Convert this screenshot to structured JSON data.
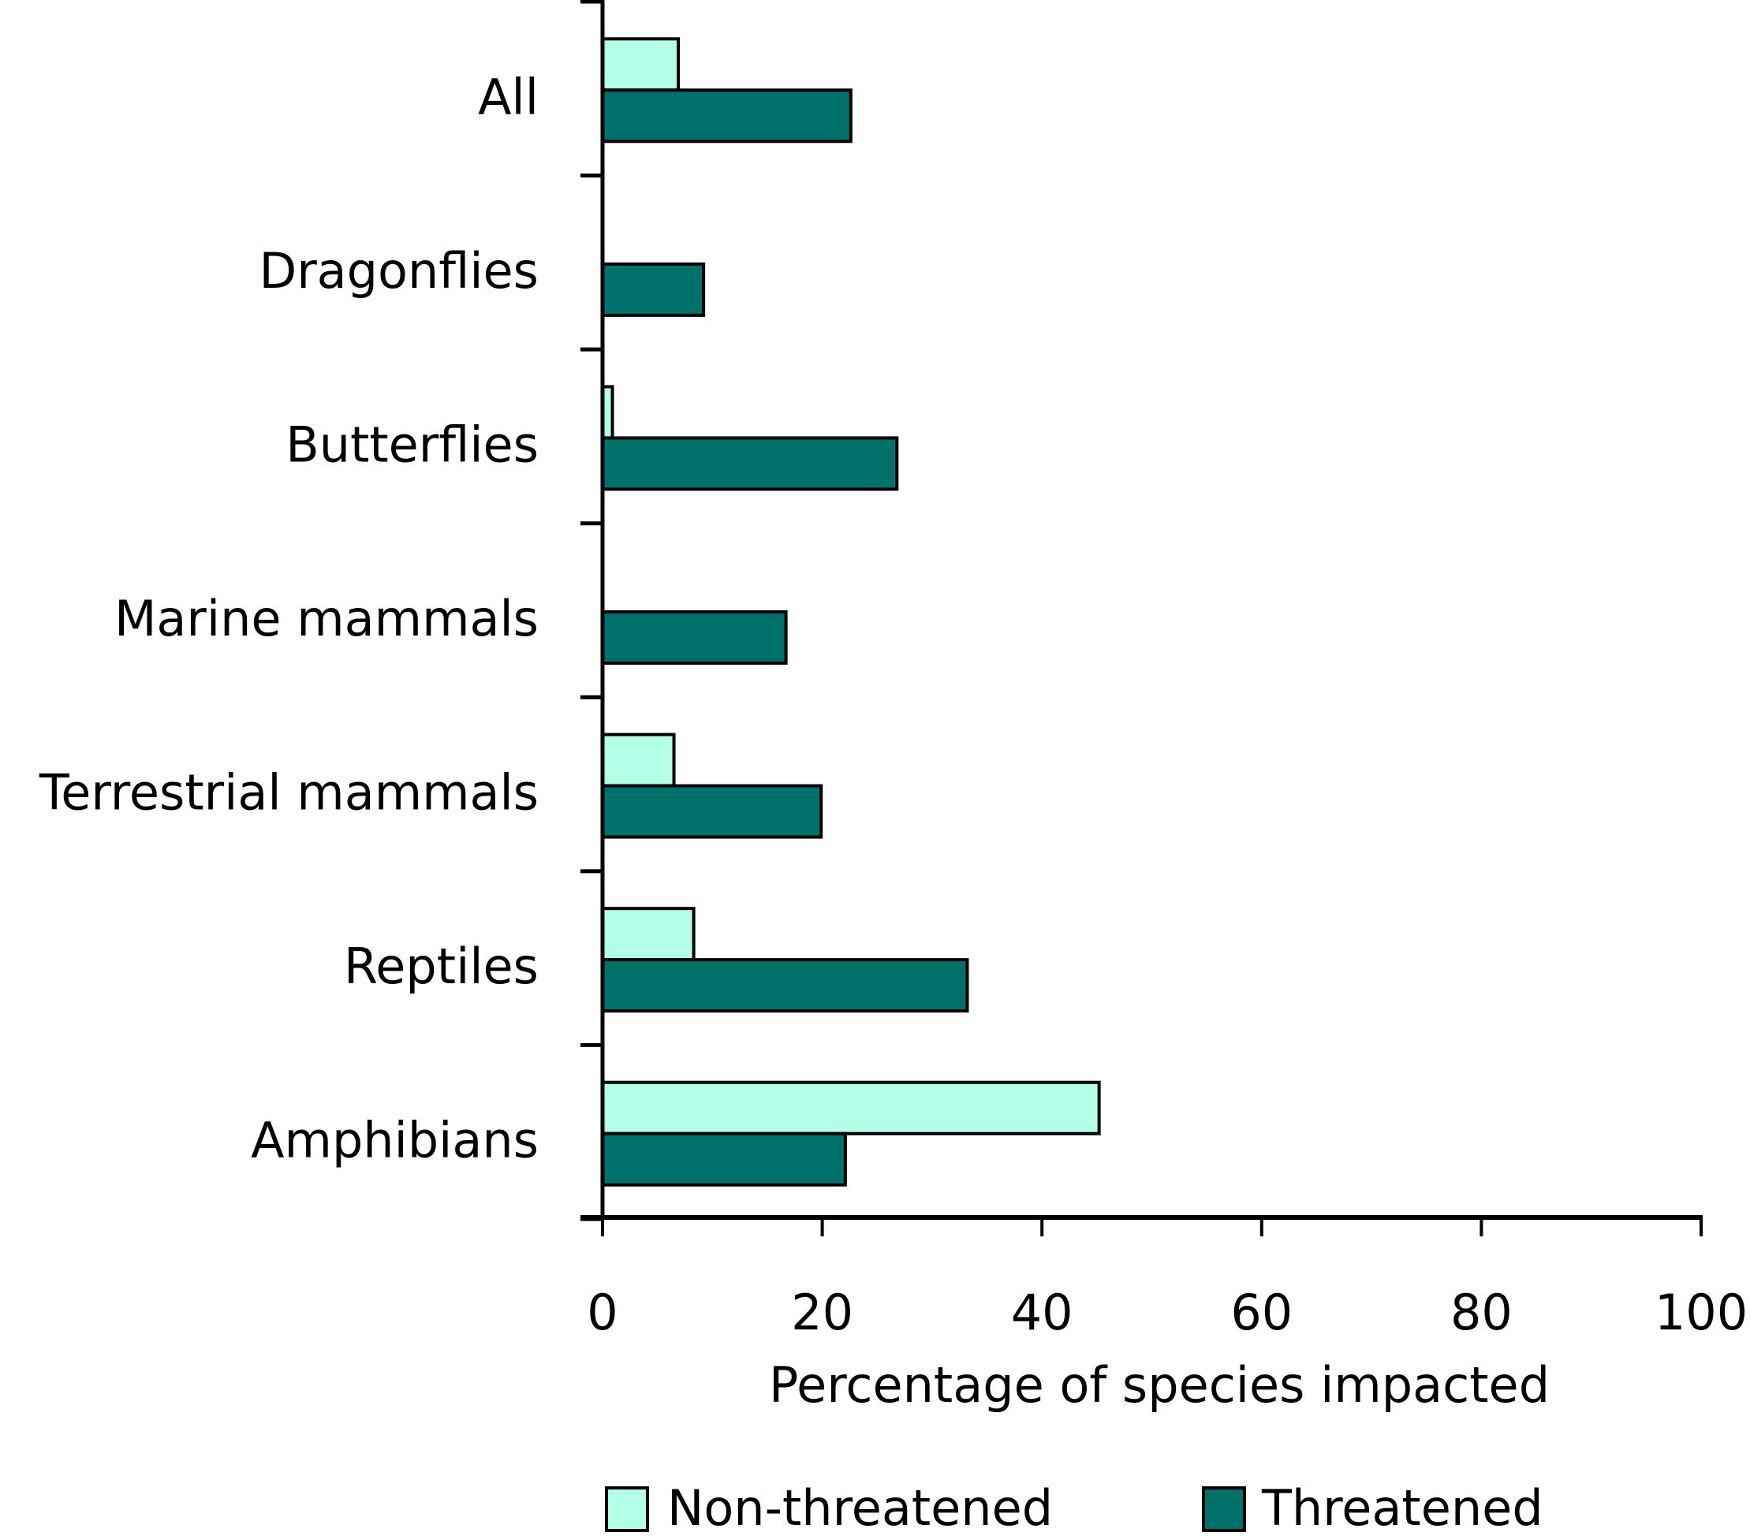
{
  "chart_data": {
    "type": "bar",
    "orientation": "horizontal",
    "title": "",
    "xlabel": "Percentage of species impacted",
    "ylabel": "",
    "xlim": [
      0,
      100
    ],
    "xticks": [
      0,
      20,
      40,
      60,
      80,
      100
    ],
    "grid": false,
    "categories": [
      "All",
      "Dragonflies",
      "Butterflies",
      "Marine mammals",
      "Terrestrial mammals",
      "Reptiles",
      "Amphibians"
    ],
    "series": [
      {
        "name": "Non-threatened",
        "color": "#b3ffe8",
        "values": [
          6.9,
          0,
          0.9,
          0,
          6.5,
          8.3,
          45.2
        ]
      },
      {
        "name": "Threatened",
        "color": "#00706a",
        "values": [
          22.6,
          9.2,
          26.8,
          16.7,
          19.9,
          33.2,
          22.1
        ]
      }
    ],
    "legend": {
      "position": "bottom",
      "entries": [
        "Non-threatened",
        "Threatened"
      ]
    }
  }
}
